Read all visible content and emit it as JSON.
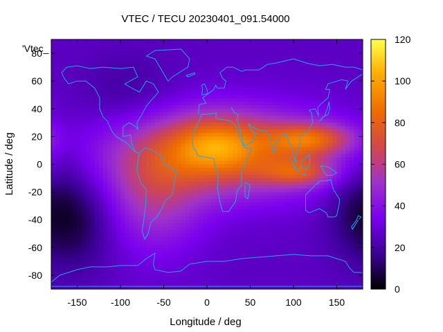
{
  "chart_data": {
    "type": "heatmap",
    "title": "VTEC / TECU 20230401_091.54000",
    "xlabel": "Longitude / deg",
    "ylabel": "Latitude / deg",
    "legend_label": "'Vtec_",
    "xlim": [
      -180,
      180
    ],
    "ylim": [
      -90,
      90
    ],
    "xticks": [
      -150,
      -100,
      -50,
      0,
      50,
      100,
      150
    ],
    "yticks": [
      -80,
      -60,
      -40,
      -20,
      0,
      20,
      40,
      60,
      80
    ],
    "colorbar": {
      "range": [
        0,
        120
      ],
      "ticks": [
        0,
        20,
        40,
        60,
        80,
        100,
        120
      ]
    },
    "palette": [
      "#000000",
      "#3c0096",
      "#7a00ee",
      "#a033c8",
      "#d24848",
      "#ee6d00",
      "#ffaa00",
      "#ffff4d"
    ],
    "grid": false,
    "field": {
      "components": [
        {
          "type": "background",
          "value": 26
        },
        {
          "lon": 20,
          "lat": 8,
          "sigma_lon": 90,
          "sigma_lat": 22,
          "peak": 50
        },
        {
          "lon": 10,
          "lat": 14,
          "sigma_lon": 35,
          "sigma_lat": 14,
          "peak": 28
        },
        {
          "lon": 120,
          "lat": 18,
          "sigma_lon": 35,
          "sigma_lat": 8,
          "peak": 40
        },
        {
          "lon": 105,
          "lat": -6,
          "sigma_lon": 30,
          "sigma_lat": 7,
          "peak": 30
        },
        {
          "lon": -60,
          "lat": -25,
          "sigma_lon": 40,
          "sigma_lat": 28,
          "peak": 25
        },
        {
          "lon": -150,
          "lat": -40,
          "sigma_lon": 30,
          "sigma_lat": 25,
          "peak": -18
        },
        {
          "lon": 170,
          "lat": -30,
          "sigma_lon": 25,
          "sigma_lat": 25,
          "peak": -12
        },
        {
          "lon": -90,
          "lat": 50,
          "sigma_lon": 40,
          "sigma_lat": 20,
          "peak": -8
        }
      ]
    }
  }
}
